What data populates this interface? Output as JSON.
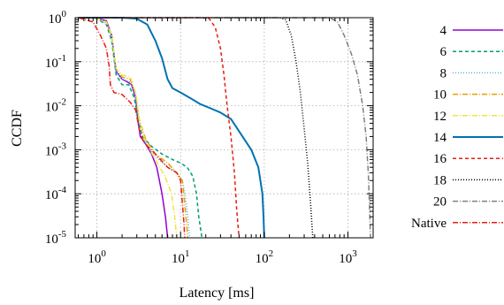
{
  "chart_data": {
    "type": "line",
    "xlabel": "Latency [ms]",
    "ylabel": "CCDF",
    "x_scale": "log",
    "y_scale": "log",
    "xlim": [
      0.55,
      2000
    ],
    "ylim": [
      1e-05,
      1
    ],
    "grid": true,
    "legend_position": "right",
    "x_ticks": [
      {
        "value": 1,
        "base": "10",
        "exp": "0"
      },
      {
        "value": 10,
        "base": "10",
        "exp": "1"
      },
      {
        "value": 100,
        "base": "10",
        "exp": "2"
      },
      {
        "value": 1000,
        "base": "10",
        "exp": "3"
      }
    ],
    "y_ticks": [
      {
        "value": 1,
        "base": "10",
        "exp": "0"
      },
      {
        "value": 0.1,
        "base": "10",
        "exp": "-1"
      },
      {
        "value": 0.01,
        "base": "10",
        "exp": "-2"
      },
      {
        "value": 0.001,
        "base": "10",
        "exp": "-3"
      },
      {
        "value": 0.0001,
        "base": "10",
        "exp": "-4"
      },
      {
        "value": 1e-05,
        "base": "10",
        "exp": "-5"
      }
    ],
    "series": [
      {
        "name": "4",
        "color": "#9400d3",
        "dash": "",
        "width": 1.5,
        "points": [
          [
            0.95,
            1
          ],
          [
            1.3,
            0.85
          ],
          [
            1.5,
            0.4
          ],
          [
            1.7,
            0.06
          ],
          [
            2.0,
            0.04
          ],
          [
            2.3,
            0.035
          ],
          [
            2.6,
            0.03
          ],
          [
            2.9,
            0.015
          ],
          [
            3.1,
            0.0045
          ],
          [
            3.3,
            0.002
          ],
          [
            3.7,
            0.0015
          ],
          [
            4.5,
            0.0008
          ],
          [
            5.2,
            0.0004
          ],
          [
            6.0,
            0.0001
          ],
          [
            6.6,
            3e-05
          ],
          [
            7.0,
            1e-05
          ]
        ]
      },
      {
        "name": "6",
        "color": "#009e73",
        "dash": "4 3",
        "width": 1.5,
        "points": [
          [
            0.95,
            1
          ],
          [
            1.3,
            0.7
          ],
          [
            1.5,
            0.3
          ],
          [
            1.7,
            0.05
          ],
          [
            2.0,
            0.03
          ],
          [
            2.4,
            0.03
          ],
          [
            2.8,
            0.015
          ],
          [
            3.1,
            0.005
          ],
          [
            3.5,
            0.002
          ],
          [
            4.5,
            0.0012
          ],
          [
            6.0,
            0.0008
          ],
          [
            8.0,
            0.0006
          ],
          [
            10,
            0.0005
          ],
          [
            12,
            0.0004
          ],
          [
            14,
            0.00025
          ],
          [
            15.5,
            0.0001
          ],
          [
            16.5,
            3e-05
          ],
          [
            18,
            1e-05
          ]
        ]
      },
      {
        "name": "8",
        "color": "#56b4e9",
        "dash": "1 2",
        "width": 1.5,
        "points": [
          [
            0.95,
            1
          ],
          [
            1.3,
            0.75
          ],
          [
            1.5,
            0.35
          ],
          [
            1.7,
            0.06
          ],
          [
            2.0,
            0.04
          ],
          [
            2.5,
            0.035
          ],
          [
            2.9,
            0.015
          ],
          [
            3.2,
            0.004
          ],
          [
            3.8,
            0.0015
          ],
          [
            5,
            0.0007
          ],
          [
            7,
            0.0004
          ],
          [
            9,
            0.0003
          ],
          [
            10.5,
            0.0002
          ],
          [
            11.5,
            8e-05
          ],
          [
            12.2,
            3e-05
          ],
          [
            12.8,
            1e-05
          ]
        ]
      },
      {
        "name": "10",
        "color": "#e69f00",
        "dash": "6 2 1 2",
        "width": 1.5,
        "points": [
          [
            0.95,
            1
          ],
          [
            1.3,
            0.8
          ],
          [
            1.5,
            0.4
          ],
          [
            1.7,
            0.07
          ],
          [
            2.0,
            0.045
          ],
          [
            2.5,
            0.04
          ],
          [
            2.9,
            0.02
          ],
          [
            3.2,
            0.005
          ],
          [
            3.8,
            0.0018
          ],
          [
            5,
            0.0008
          ],
          [
            7,
            0.0005
          ],
          [
            9,
            0.0003
          ],
          [
            10.5,
            0.0002
          ],
          [
            11.2,
            6e-05
          ],
          [
            11.8,
            2e-05
          ],
          [
            12.2,
            1e-05
          ]
        ]
      },
      {
        "name": "12",
        "color": "#f0e442",
        "dash": "6 2 1 2",
        "width": 1.5,
        "points": [
          [
            0.95,
            1
          ],
          [
            1.3,
            0.8
          ],
          [
            1.5,
            0.4
          ],
          [
            1.7,
            0.07
          ],
          [
            2.0,
            0.05
          ],
          [
            2.5,
            0.045
          ],
          [
            2.9,
            0.02
          ],
          [
            3.2,
            0.005
          ],
          [
            3.8,
            0.0015
          ],
          [
            5,
            0.0006
          ],
          [
            6.5,
            0.00025
          ],
          [
            7.8,
            0.0001
          ],
          [
            8.5,
            3e-05
          ],
          [
            9,
            1e-05
          ]
        ]
      },
      {
        "name": "14",
        "color": "#0072b2",
        "dash": "",
        "width": 2,
        "points": [
          [
            0.6,
            1
          ],
          [
            2.0,
            1
          ],
          [
            3.0,
            0.95
          ],
          [
            4.0,
            0.7
          ],
          [
            5.0,
            0.3
          ],
          [
            6.0,
            0.12
          ],
          [
            7.0,
            0.04
          ],
          [
            8.0,
            0.025
          ],
          [
            10,
            0.02
          ],
          [
            13,
            0.015
          ],
          [
            17,
            0.011
          ],
          [
            22,
            0.009
          ],
          [
            30,
            0.007
          ],
          [
            40,
            0.005
          ],
          [
            55,
            0.002
          ],
          [
            70,
            0.001
          ],
          [
            85,
            0.0004
          ],
          [
            95,
            0.0001
          ],
          [
            98,
            3e-05
          ],
          [
            100,
            1e-05
          ]
        ]
      },
      {
        "name": "16",
        "color": "#e51e10",
        "dash": "4 3",
        "width": 1.5,
        "points": [
          [
            0.6,
            1
          ],
          [
            18,
            1
          ],
          [
            22,
            0.95
          ],
          [
            26,
            0.6
          ],
          [
            30,
            0.2
          ],
          [
            33,
            0.05
          ],
          [
            36,
            0.01
          ],
          [
            40,
            0.002
          ],
          [
            44,
            0.0003
          ],
          [
            47,
            4e-05
          ],
          [
            50,
            1e-05
          ]
        ]
      },
      {
        "name": "18",
        "color": "#000000",
        "dash": "1 2",
        "width": 1.5,
        "points": [
          [
            0.6,
            1
          ],
          [
            150,
            1
          ],
          [
            180,
            0.9
          ],
          [
            210,
            0.4
          ],
          [
            240,
            0.1
          ],
          [
            270,
            0.02
          ],
          [
            300,
            0.003
          ],
          [
            330,
            0.0005
          ],
          [
            360,
            5e-05
          ],
          [
            380,
            1e-05
          ]
        ]
      },
      {
        "name": "20",
        "color": "#808080",
        "dash": "6 2 1 2",
        "width": 1.5,
        "points": [
          [
            0.6,
            1
          ],
          [
            600,
            1
          ],
          [
            750,
            0.8
          ],
          [
            900,
            0.4
          ],
          [
            1100,
            0.15
          ],
          [
            1300,
            0.05
          ],
          [
            1500,
            0.01
          ],
          [
            1650,
            0.002
          ],
          [
            1750,
            0.0003
          ],
          [
            1820,
            4e-05
          ],
          [
            1860,
            1e-05
          ]
        ]
      },
      {
        "name": "Native",
        "color": "#e51e10",
        "dash": "6 2 1 2",
        "width": 1.5,
        "points": [
          [
            0.6,
            1
          ],
          [
            0.9,
            0.8
          ],
          [
            1.1,
            0.4
          ],
          [
            1.3,
            0.2
          ],
          [
            1.4,
            0.08
          ],
          [
            1.45,
            0.03
          ],
          [
            1.6,
            0.02
          ],
          [
            2.0,
            0.018
          ],
          [
            2.5,
            0.012
          ],
          [
            2.9,
            0.008
          ],
          [
            3.2,
            0.003
          ],
          [
            3.6,
            0.0015
          ],
          [
            5,
            0.0008
          ],
          [
            7,
            0.0004
          ],
          [
            9,
            0.0003
          ],
          [
            10,
            0.0002
          ],
          [
            10.6,
            5e-05
          ],
          [
            11,
            2e-05
          ],
          [
            11.2,
            1e-05
          ]
        ]
      }
    ]
  }
}
